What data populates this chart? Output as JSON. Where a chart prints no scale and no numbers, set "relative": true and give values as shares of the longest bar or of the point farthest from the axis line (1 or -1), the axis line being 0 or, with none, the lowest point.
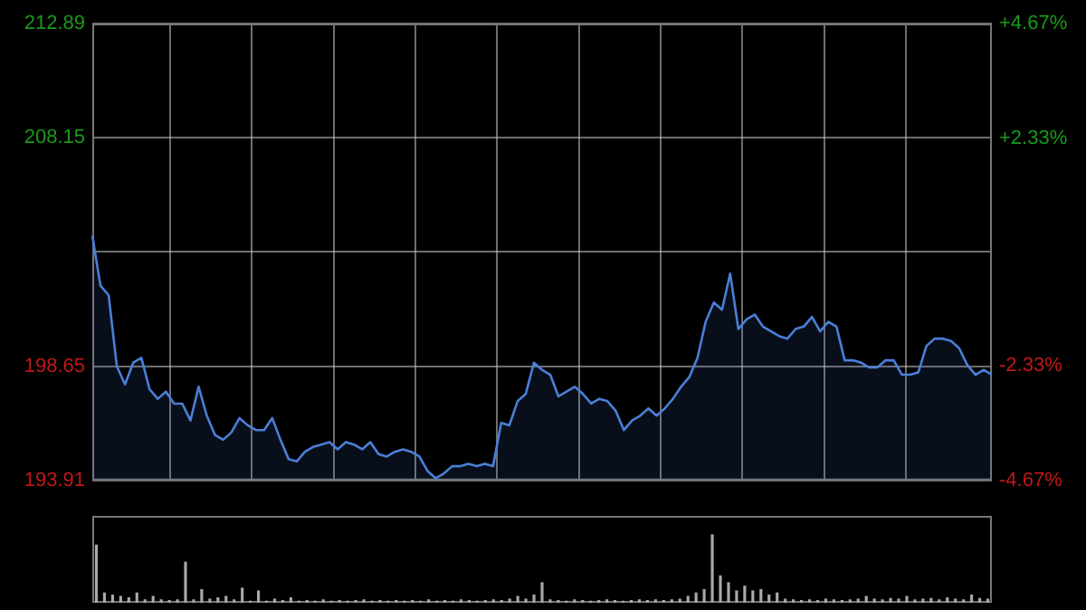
{
  "chart_data": [
    {
      "type": "area",
      "categories": [
        null,
        null,
        null,
        null,
        null,
        null,
        null,
        null,
        null,
        null,
        null,
        null,
        null,
        null,
        null,
        null,
        null,
        null,
        null,
        null,
        null,
        null,
        null,
        null,
        null,
        null,
        null,
        null,
        null,
        null,
        null,
        null,
        null,
        null,
        null,
        null,
        null,
        null,
        null,
        null,
        null,
        null,
        null,
        null,
        null,
        null,
        null,
        null,
        null,
        null,
        null,
        null,
        null,
        null,
        null,
        null,
        null,
        null,
        null,
        null,
        null,
        null,
        null,
        null,
        null,
        null,
        null,
        null,
        null,
        null,
        null,
        null,
        null,
        null,
        null,
        null,
        null,
        null,
        null,
        null,
        null,
        null,
        null,
        null,
        null,
        null,
        null,
        null,
        null,
        null,
        null,
        null,
        null,
        null,
        null,
        null,
        null,
        null,
        null,
        null,
        null,
        null,
        null,
        null,
        null,
        null,
        null,
        null,
        null,
        null,
        null
      ],
      "series": [
        {
          "color": "#4a7fd8",
          "values": [
            204.08,
            202.0,
            201.6,
            198.65,
            197.9,
            198.8,
            199.0,
            197.7,
            197.3,
            197.6,
            197.1,
            197.1,
            196.4,
            197.8,
            196.6,
            195.8,
            195.6,
            195.9,
            196.5,
            196.2,
            196.0,
            196.0,
            196.5,
            195.6,
            194.8,
            194.7,
            195.1,
            195.3,
            195.4,
            195.5,
            195.2,
            195.5,
            195.4,
            195.2,
            195.5,
            195.0,
            194.9,
            195.1,
            195.2,
            195.1,
            194.9,
            194.3,
            194.0,
            194.2,
            194.5,
            194.5,
            194.6,
            194.5,
            194.6,
            194.5,
            196.3,
            196.2,
            197.2,
            197.5,
            198.8,
            198.5,
            198.3,
            197.4,
            197.6,
            197.8,
            197.5,
            197.1,
            197.3,
            197.2,
            196.8,
            196.0,
            196.4,
            196.6,
            196.9,
            196.6,
            196.9,
            197.3,
            197.8,
            198.2,
            199.0,
            200.5,
            201.3,
            201.0,
            202.5,
            200.2,
            200.6,
            200.8,
            200.3,
            200.1,
            199.9,
            199.8,
            200.2,
            200.3,
            200.7,
            200.1,
            200.5,
            200.3,
            198.9,
            198.9,
            198.8,
            198.6,
            198.6,
            198.9,
            198.9,
            198.3,
            198.3,
            198.4,
            199.5,
            199.8,
            199.8,
            199.7,
            199.4,
            198.7,
            198.3,
            198.5,
            198.3
          ]
        }
      ],
      "ylim": [
        193.91,
        212.89
      ],
      "yticks": [
        193.91,
        198.65,
        {
          "value": 203.4,
          "label": null
        },
        208.15,
        212.89
      ],
      "y2lim": [
        -4.67,
        4.67
      ],
      "y2ticks": [
        {
          "value": -4.67,
          "label": "-4.67%"
        },
        {
          "value": -2.33,
          "label": "-2.33%"
        },
        {
          "value": 0,
          "label": null
        },
        {
          "value": 2.33,
          "label": "+2.33%"
        },
        {
          "value": 4.67,
          "label": "+4.67%"
        }
      ],
      "tick_labels": "y",
      "grid": true
    },
    {
      "type": "bar",
      "relative": true,
      "tick_labels": false,
      "categories": [
        null,
        null,
        null,
        null,
        null,
        null,
        null,
        null,
        null,
        null,
        null,
        null,
        null,
        null,
        null,
        null,
        null,
        null,
        null,
        null,
        null,
        null,
        null,
        null,
        null,
        null,
        null,
        null,
        null,
        null,
        null,
        null,
        null,
        null,
        null,
        null,
        null,
        null,
        null,
        null,
        null,
        null,
        null,
        null,
        null,
        null,
        null,
        null,
        null,
        null,
        null,
        null,
        null,
        null,
        null,
        null,
        null,
        null,
        null,
        null,
        null,
        null,
        null,
        null,
        null,
        null,
        null,
        null,
        null,
        null,
        null,
        null,
        null,
        null,
        null,
        null,
        null,
        null,
        null,
        null,
        null,
        null,
        null,
        null,
        null,
        null,
        null,
        null,
        null,
        null,
        null,
        null,
        null,
        null,
        null,
        null,
        null,
        null,
        null,
        null,
        null,
        null,
        null,
        null,
        null,
        null,
        null,
        null,
        null,
        null,
        null
      ],
      "series": [
        {
          "color": "#aaaaaa",
          "values": [
            0.85,
            0.15,
            0.12,
            0.1,
            0.08,
            0.15,
            0.05,
            0.1,
            0.05,
            0.04,
            0.05,
            0.6,
            0.05,
            0.2,
            0.06,
            0.08,
            0.1,
            0.05,
            0.22,
            0.03,
            0.18,
            0.03,
            0.06,
            0.04,
            0.08,
            0.03,
            0.04,
            0.03,
            0.05,
            0.03,
            0.04,
            0.03,
            0.04,
            0.05,
            0.03,
            0.04,
            0.03,
            0.04,
            0.03,
            0.04,
            0.03,
            0.05,
            0.03,
            0.04,
            0.03,
            0.05,
            0.04,
            0.03,
            0.04,
            0.05,
            0.04,
            0.06,
            0.1,
            0.06,
            0.12,
            0.3,
            0.05,
            0.04,
            0.03,
            0.05,
            0.04,
            0.03,
            0.04,
            0.05,
            0.04,
            0.03,
            0.04,
            0.05,
            0.04,
            0.05,
            0.04,
            0.05,
            0.06,
            0.1,
            0.15,
            0.2,
            1,
            0.4,
            0.3,
            0.18,
            0.25,
            0.18,
            0.2,
            0.12,
            0.15,
            0.06,
            0.05,
            0.04,
            0.05,
            0.04,
            0.06,
            0.05,
            0.04,
            0.05,
            0.06,
            0.1,
            0.06,
            0.05,
            0.07,
            0.06,
            0.1,
            0.05,
            0.06,
            0.07,
            0.05,
            0.08,
            0.06,
            0.05,
            0.12,
            0.07,
            0.06
          ]
        }
      ],
      "grid": false
    }
  ]
}
